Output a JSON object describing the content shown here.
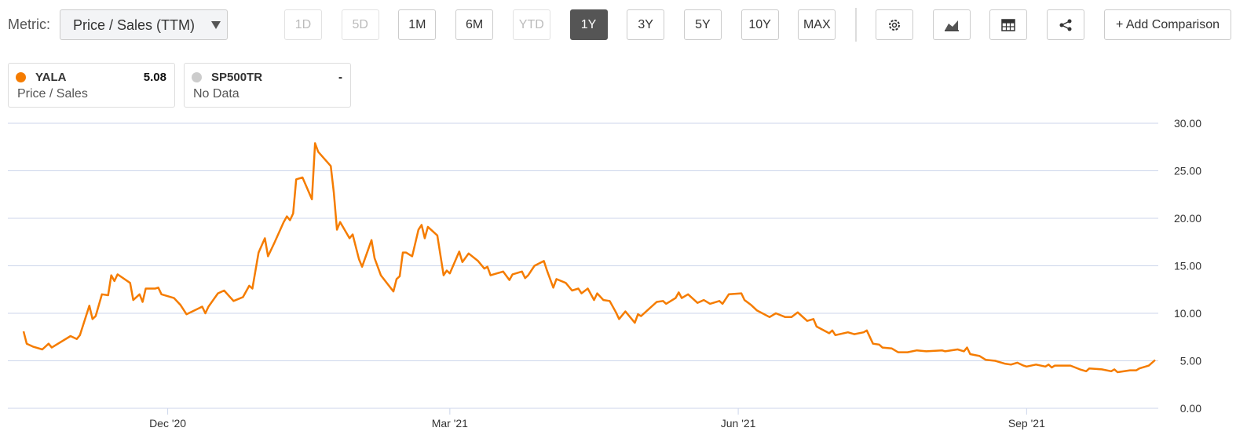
{
  "toolbar": {
    "metric_label": "Metric:",
    "metric_value": "Price / Sales (TTM)",
    "ranges": [
      {
        "label": "1D",
        "state": "disabled"
      },
      {
        "label": "5D",
        "state": "disabled"
      },
      {
        "label": "1M",
        "state": "enabled"
      },
      {
        "label": "6M",
        "state": "enabled"
      },
      {
        "label": "YTD",
        "state": "disabled"
      },
      {
        "label": "1Y",
        "state": "active"
      },
      {
        "label": "3Y",
        "state": "enabled"
      },
      {
        "label": "5Y",
        "state": "enabled"
      },
      {
        "label": "10Y",
        "state": "enabled"
      },
      {
        "label": "MAX",
        "state": "enabled"
      }
    ],
    "add_comparison": "+ Add Comparison"
  },
  "legend_cards": [
    {
      "name": "YALA",
      "value": "5.08",
      "metric": "Price / Sales",
      "color": "#f57c00"
    },
    {
      "name": "SP500TR",
      "value": "-",
      "metric": "No Data",
      "color": "#cccccc"
    }
  ],
  "chart_data": {
    "type": "line",
    "grid": true,
    "xlim": [
      10,
      377
    ],
    "xticks": [
      {
        "value": 61,
        "label": "Dec '20"
      },
      {
        "value": 151,
        "label": "Mar '21"
      },
      {
        "value": 243,
        "label": "Jun '21"
      },
      {
        "value": 335,
        "label": "Sep '21"
      }
    ],
    "ylim": [
      0,
      30
    ],
    "yticks": [
      {
        "value": 0,
        "label": "0.00"
      },
      {
        "value": 5,
        "label": "5.00"
      },
      {
        "value": 10,
        "label": "10.00"
      },
      {
        "value": 15,
        "label": "15.00"
      },
      {
        "value": 20,
        "label": "20.00"
      },
      {
        "value": 25,
        "label": "25.00"
      },
      {
        "value": 30,
        "label": "30.00"
      }
    ],
    "x": [
      15,
      16,
      18,
      21,
      23,
      24,
      30,
      32,
      33,
      36,
      37,
      38,
      40,
      42,
      43,
      44,
      45,
      49,
      50,
      52,
      53,
      54,
      57,
      58,
      59,
      63,
      65,
      67,
      72,
      73,
      74,
      77,
      79,
      82,
      85,
      87,
      88,
      90,
      92,
      93,
      95,
      98,
      99,
      100,
      101,
      102,
      104,
      107,
      108,
      109,
      113,
      114,
      115,
      116,
      119,
      120,
      122,
      123,
      126,
      127,
      129,
      133,
      134,
      135,
      136,
      137,
      139,
      141,
      142,
      143,
      144,
      147,
      149,
      150,
      151,
      154,
      155,
      157,
      160,
      162,
      163,
      164,
      168,
      170,
      171,
      174,
      175,
      176,
      178,
      181,
      182,
      184,
      185,
      188,
      190,
      192,
      193,
      195,
      197,
      198,
      200,
      202,
      204,
      205,
      207,
      210,
      211,
      212,
      217,
      219,
      220,
      223,
      224,
      225,
      227,
      230,
      232,
      234,
      237,
      238,
      240,
      244,
      245,
      247,
      249,
      253,
      255,
      258,
      260,
      262,
      265,
      267,
      268,
      272,
      273,
      274,
      278,
      280,
      283,
      284,
      286,
      288,
      289,
      292,
      294,
      297,
      300,
      303,
      308,
      309,
      313,
      315,
      316,
      317,
      320,
      322,
      325,
      328,
      330,
      332,
      334,
      335,
      338,
      341,
      342,
      343,
      344,
      349,
      352,
      354,
      355,
      359,
      362,
      363,
      364,
      368,
      370,
      371,
      374,
      376
    ],
    "series": [
      {
        "name": "YALA",
        "color": "#f57c00",
        "values": [
          8.1,
          6.8,
          6.5,
          6.2,
          6.8,
          6.4,
          7.6,
          7.3,
          7.7,
          10.8,
          9.4,
          9.7,
          12.0,
          11.9,
          14.0,
          13.4,
          14.1,
          13.2,
          11.4,
          12.0,
          11.2,
          12.6,
          12.6,
          12.7,
          12.0,
          11.6,
          10.9,
          9.9,
          10.7,
          10.0,
          10.7,
          12.1,
          12.4,
          11.3,
          11.7,
          12.9,
          12.6,
          16.4,
          17.9,
          16.0,
          17.4,
          19.6,
          20.2,
          19.8,
          20.5,
          24.1,
          24.3,
          22.0,
          27.9,
          27.0,
          25.5,
          22.7,
          18.8,
          19.6,
          17.9,
          18.3,
          15.7,
          14.9,
          17.7,
          15.8,
          14.0,
          12.3,
          13.6,
          13.9,
          16.4,
          16.4,
          16.0,
          18.8,
          19.3,
          17.9,
          19.1,
          18.2,
          14.0,
          14.5,
          14.2,
          16.5,
          15.4,
          16.3,
          15.5,
          14.7,
          14.9,
          14.0,
          14.4,
          13.5,
          14.1,
          14.4,
          13.7,
          14.0,
          15.0,
          15.5,
          14.5,
          12.7,
          13.6,
          13.2,
          12.4,
          12.6,
          12.1,
          12.6,
          11.4,
          12.1,
          11.4,
          11.3,
          10.1,
          9.4,
          10.2,
          9.0,
          9.9,
          9.7,
          11.2,
          11.3,
          11.0,
          11.6,
          12.2,
          11.6,
          12.0,
          11.1,
          11.4,
          11.0,
          11.3,
          11.0,
          12.0,
          12.1,
          11.4,
          10.9,
          10.3,
          9.6,
          10.0,
          9.6,
          9.6,
          10.1,
          9.2,
          9.4,
          8.6,
          7.9,
          8.2,
          7.7,
          8.0,
          7.8,
          8.0,
          8.2,
          6.8,
          6.7,
          6.4,
          6.3,
          5.9,
          5.9,
          6.1,
          6.0,
          6.1,
          6.0,
          6.2,
          6.0,
          6.4,
          5.7,
          5.5,
          5.1,
          5.0,
          4.7,
          4.6,
          4.8,
          4.5,
          4.4,
          4.6,
          4.4,
          4.6,
          4.3,
          4.5,
          4.5,
          4.1,
          3.9,
          4.2,
          4.1,
          3.9,
          4.1,
          3.8,
          4.0,
          4.0,
          4.2,
          4.5,
          5.08
        ]
      }
    ]
  }
}
